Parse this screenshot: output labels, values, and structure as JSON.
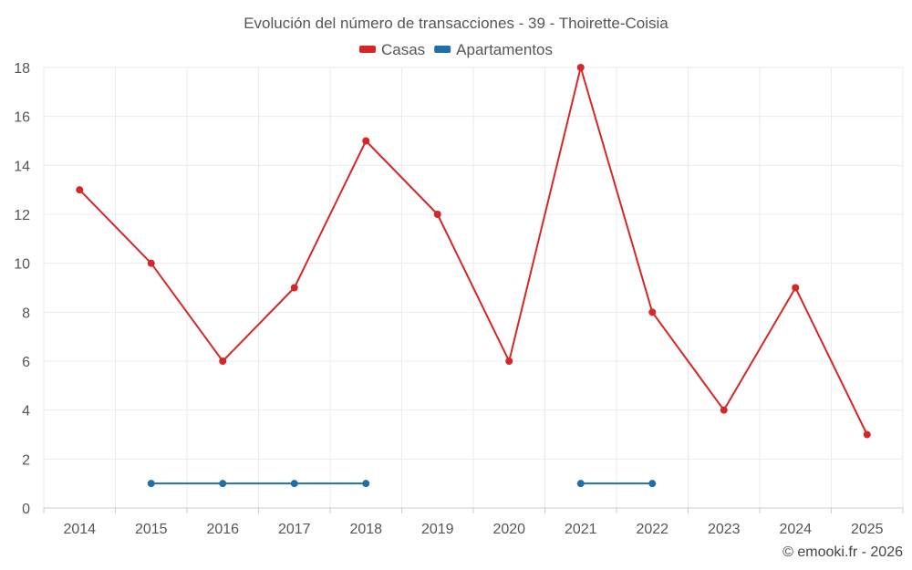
{
  "chart_data": {
    "type": "line",
    "title": "Evolución del número de transacciones - 39 - Thoirette-Coisia",
    "categories": [
      "2014",
      "2015",
      "2016",
      "2017",
      "2018",
      "2019",
      "2020",
      "2021",
      "2022",
      "2023",
      "2024",
      "2025"
    ],
    "series": [
      {
        "name": "Casas",
        "color": "#d62728",
        "values": [
          13,
          10,
          6,
          9,
          15,
          12,
          6,
          18,
          8,
          4,
          9,
          3
        ]
      },
      {
        "name": "Apartamentos",
        "color": "#1f6fa8",
        "values": [
          null,
          1,
          1,
          1,
          1,
          null,
          null,
          1,
          1,
          null,
          null,
          null
        ]
      }
    ],
    "ylim": [
      0,
      18
    ],
    "yticks": [
      0,
      2,
      4,
      6,
      8,
      10,
      12,
      14,
      16,
      18
    ],
    "xlabel": "",
    "ylabel": "",
    "grid": true,
    "legend_position": "top-center"
  },
  "credit": "© emooki.fr - 2026"
}
